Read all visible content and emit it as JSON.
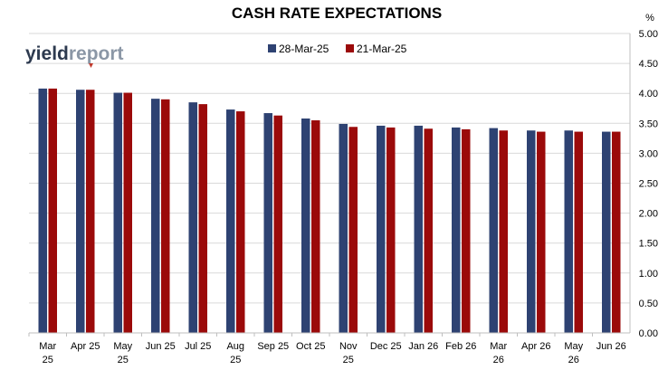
{
  "chart_data": {
    "type": "bar",
    "title": "CASH RATE EXPECTATIONS",
    "y_unit_label": "%",
    "logo": {
      "text_dark": "yield",
      "text_light": "report"
    },
    "ylim": [
      0,
      5.0
    ],
    "y_ticks": [
      "0.00",
      "0.50",
      "1.00",
      "1.50",
      "2.00",
      "2.50",
      "3.00",
      "3.50",
      "4.00",
      "4.50",
      "5.00"
    ],
    "y_axis_side": "right",
    "grid": true,
    "legend_position": "top-center",
    "categories": [
      [
        "Mar",
        "25"
      ],
      [
        "Apr 25"
      ],
      [
        "May",
        "25"
      ],
      [
        "Jun 25"
      ],
      [
        "Jul 25"
      ],
      [
        "Aug",
        "25"
      ],
      [
        "Sep 25"
      ],
      [
        "Oct 25"
      ],
      [
        "Nov",
        "25"
      ],
      [
        "Dec 25"
      ],
      [
        "Jan 26"
      ],
      [
        "Feb 26"
      ],
      [
        "Mar",
        "26"
      ],
      [
        "Apr 26"
      ],
      [
        "May",
        "26"
      ],
      [
        "Jun 26"
      ]
    ],
    "series": [
      {
        "name": "28-Mar-25",
        "color": "#2E4272",
        "values": [
          4.08,
          4.06,
          4.01,
          3.91,
          3.85,
          3.73,
          3.67,
          3.58,
          3.49,
          3.46,
          3.46,
          3.43,
          3.42,
          3.38,
          3.38,
          3.36
        ]
      },
      {
        "name": "21-Mar-25",
        "color": "#9B0A0A",
        "values": [
          4.08,
          4.06,
          4.01,
          3.9,
          3.82,
          3.7,
          3.63,
          3.55,
          3.44,
          3.43,
          3.41,
          3.4,
          3.38,
          3.36,
          3.36,
          3.36
        ]
      }
    ]
  }
}
